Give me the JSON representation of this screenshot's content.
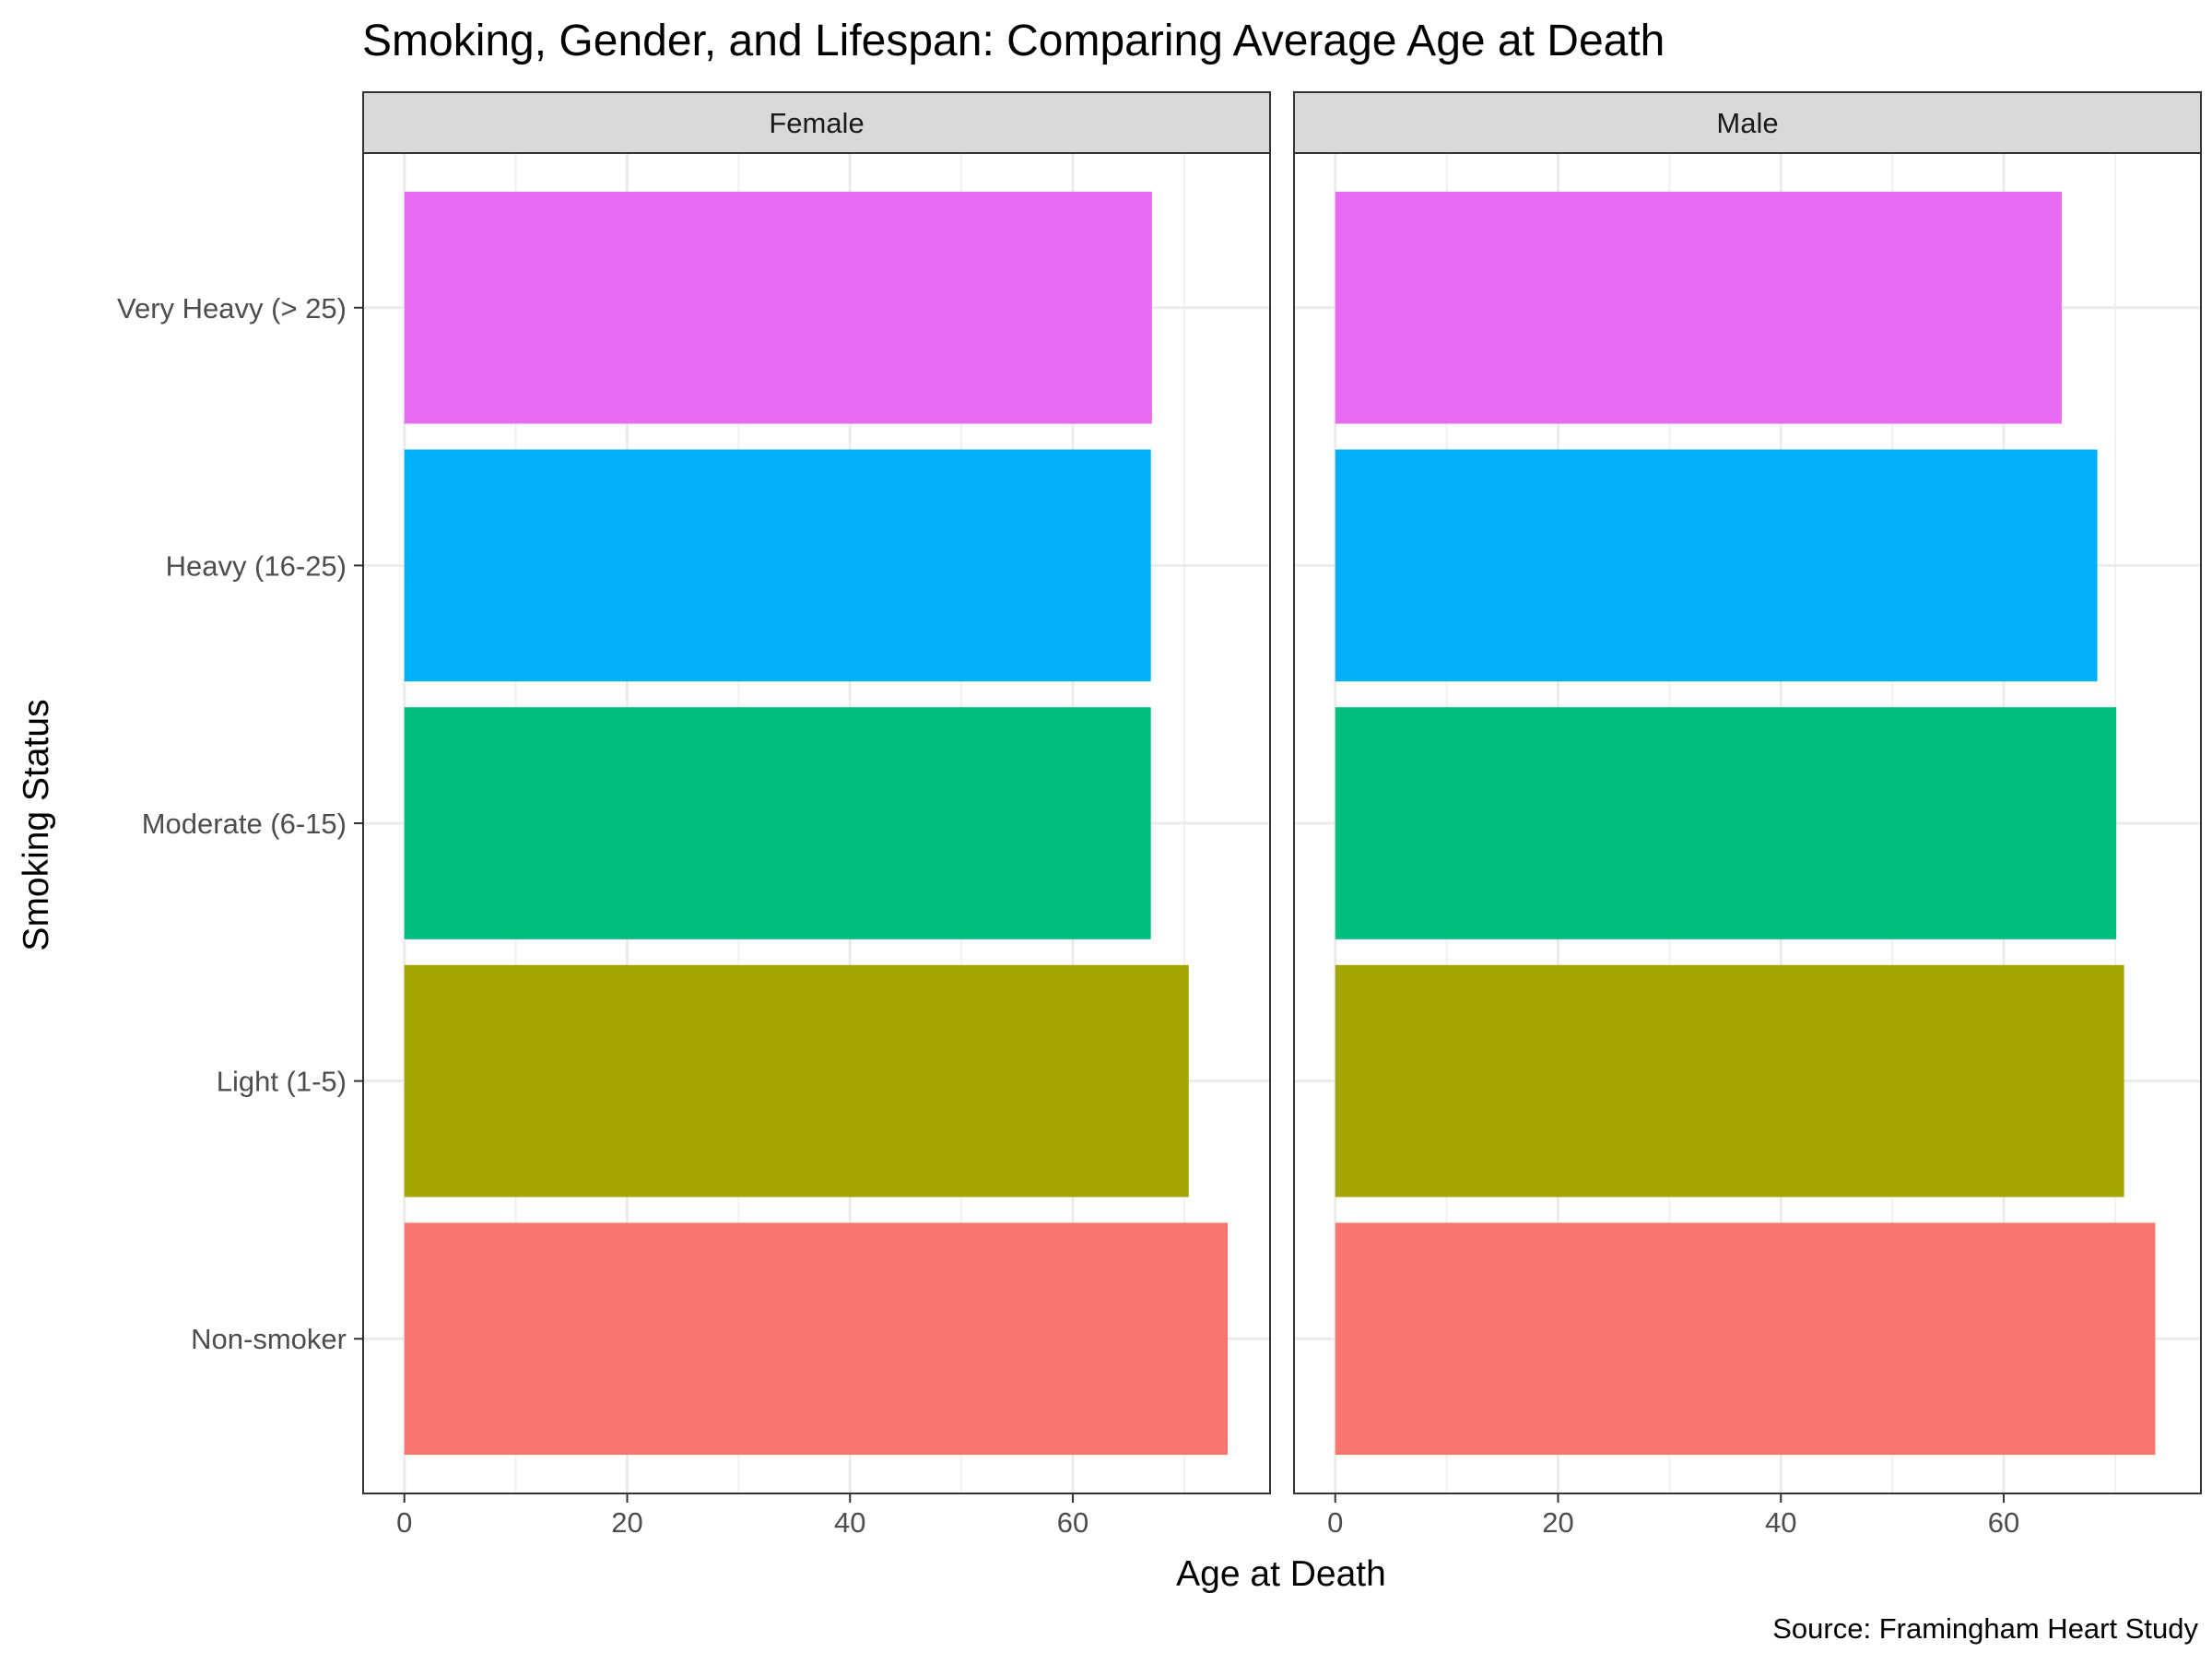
{
  "chart_data": {
    "type": "bar",
    "orientation": "horizontal",
    "title": "Smoking, Gender, and Lifespan: Comparing Average Age at Death",
    "xlabel": "Age at Death",
    "ylabel": "Smoking Status",
    "caption": "Source: Framingham Heart Study",
    "categories": [
      "Non-smoker",
      "Light (1-5)",
      "Moderate (6-15)",
      "Heavy (16-25)",
      "Very Heavy (> 25)"
    ],
    "category_colors": [
      "#F8766D",
      "#A3A500",
      "#00BF7D",
      "#00B0F6",
      "#E76BF3"
    ],
    "xlim": [
      -3.7,
      77.7
    ],
    "x_ticks": [
      0,
      20,
      40,
      60
    ],
    "grid": true,
    "legend": "none",
    "facets": [
      {
        "name": "Female",
        "values": [
          73.9,
          70.4,
          67.0,
          67.0,
          67.1
        ]
      },
      {
        "name": "Male",
        "values": [
          73.6,
          70.8,
          70.1,
          68.4,
          65.2
        ]
      }
    ]
  }
}
